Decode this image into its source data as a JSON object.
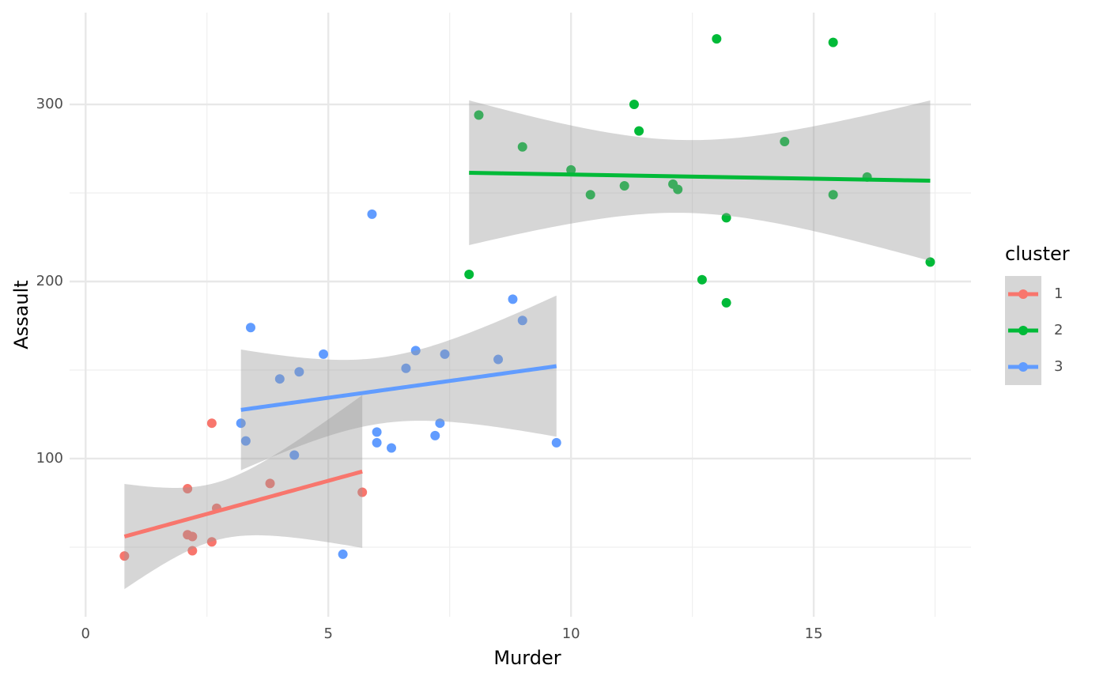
{
  "chart_data": {
    "type": "scatter",
    "x_label": "Murder",
    "y_label": "Assault",
    "legend_title": "cluster",
    "xlim": [
      -0.33,
      18.24
    ],
    "ylim": [
      10.7,
      351.8
    ],
    "xticks": [
      0,
      5,
      10,
      15
    ],
    "yticks": [
      100,
      200,
      300
    ],
    "xminor": [
      2.5,
      7.5,
      12.5,
      17.5
    ],
    "yminor": [
      50,
      150,
      250
    ],
    "grid": true,
    "legend": "right",
    "trend": "lm",
    "se": true,
    "series": [
      {
        "name": "1",
        "color": "#F8766D",
        "x": [
          0.8,
          2.1,
          2.6,
          2.1,
          2.2,
          2.2,
          2.7,
          2.6,
          3.8,
          5.7
        ],
        "values": [
          45,
          83,
          120,
          57,
          56,
          48,
          72,
          53,
          86,
          81
        ]
      },
      {
        "name": "2",
        "color": "#00BA38",
        "x": [
          13.0,
          15.4,
          11.3,
          8.1,
          11.4,
          9.0,
          14.4,
          10.0,
          10.4,
          11.1,
          12.1,
          12.2,
          15.4,
          16.1,
          13.2,
          7.9,
          12.7,
          13.2,
          17.4
        ],
        "values": [
          337,
          335,
          300,
          294,
          285,
          276,
          279,
          263,
          249,
          254,
          255,
          252,
          249,
          259,
          236,
          204,
          201,
          188,
          211
        ]
      },
      {
        "name": "3",
        "color": "#619CFF",
        "x": [
          5.9,
          3.4,
          8.8,
          9.0,
          4.9,
          6.8,
          7.4,
          4.0,
          4.4,
          6.6,
          8.5,
          3.2,
          3.3,
          7.3,
          6.0,
          7.2,
          6.0,
          6.3,
          4.3,
          9.7,
          5.3
        ],
        "values": [
          238,
          174,
          190,
          178,
          159,
          161,
          159,
          145,
          149,
          151,
          156,
          120,
          110,
          120,
          115,
          113,
          109,
          106,
          102,
          109,
          46
        ]
      }
    ]
  }
}
